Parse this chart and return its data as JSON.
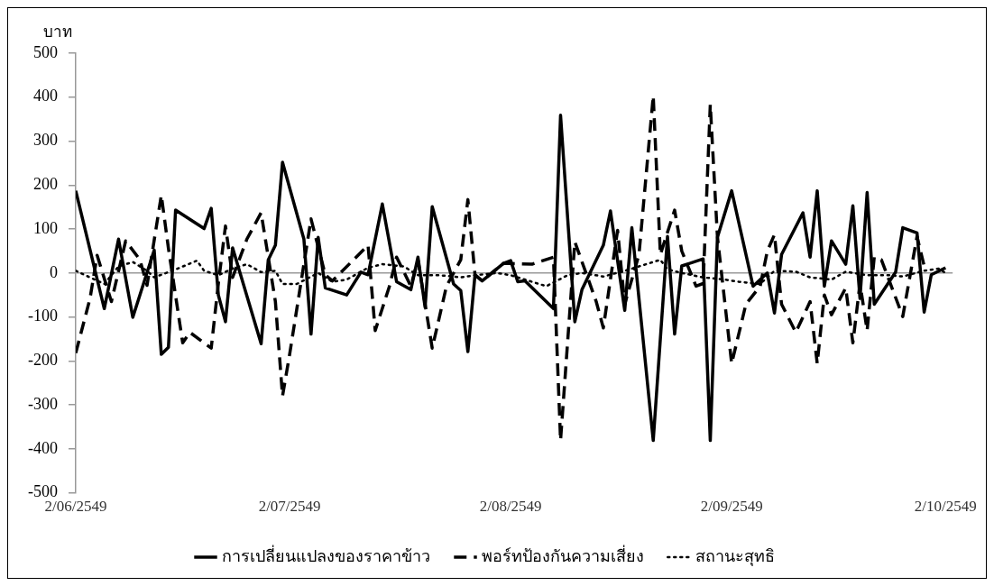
{
  "chart_data": {
    "type": "line",
    "ylabel": "บาท",
    "ylim": [
      -500,
      500
    ],
    "yticks": [
      -500,
      -400,
      -300,
      -200,
      -100,
      0,
      100,
      200,
      300,
      400,
      500
    ],
    "xlim": [
      "2549-06-02",
      "2549-10-03"
    ],
    "xticks": [
      {
        "value": "2549-06-02",
        "label": "2/06/2549"
      },
      {
        "value": "2549-07-02",
        "label": "2/07/2549"
      },
      {
        "value": "2549-08-02",
        "label": "2/08/2549"
      },
      {
        "value": "2549-09-02",
        "label": "2/09/2549"
      },
      {
        "value": "2549-10-02",
        "label": "2/10/2549"
      }
    ],
    "legend": "bottom",
    "marker": "none",
    "series": [
      {
        "name": "การเปลี่ยนแปลงของราคาข้าว",
        "color": "#000000",
        "line_style": "solid",
        "x": [
          "2549-06-02",
          "2549-06-06",
          "2549-06-08",
          "2549-06-10",
          "2549-06-13",
          "2549-06-14",
          "2549-06-15",
          "2549-06-16",
          "2549-06-20",
          "2549-06-21",
          "2549-06-22",
          "2549-06-23",
          "2549-06-24",
          "2549-06-28",
          "2549-06-29",
          "2549-06-30",
          "2549-07-01",
          "2549-07-04",
          "2549-07-05",
          "2549-07-06",
          "2549-07-07",
          "2549-07-10",
          "2549-07-12",
          "2549-07-13",
          "2549-07-15",
          "2549-07-17",
          "2549-07-19",
          "2549-07-20",
          "2549-07-21",
          "2549-07-22",
          "2549-07-25",
          "2549-07-26",
          "2549-07-27",
          "2549-07-28",
          "2549-07-29",
          "2549-08-01",
          "2549-08-02",
          "2549-08-03",
          "2549-08-04",
          "2549-08-08",
          "2549-08-09",
          "2549-08-11",
          "2549-08-12",
          "2549-08-15",
          "2549-08-16",
          "2549-08-18",
          "2549-08-19",
          "2549-08-22",
          "2549-08-24",
          "2549-08-25",
          "2549-08-26",
          "2549-08-29",
          "2549-08-30",
          "2549-08-31",
          "2549-09-02",
          "2549-09-05",
          "2549-09-07",
          "2549-09-08",
          "2549-09-09",
          "2549-09-12",
          "2549-09-13",
          "2549-09-14",
          "2549-09-15",
          "2549-09-16",
          "2549-09-18",
          "2549-09-19",
          "2549-09-20",
          "2549-09-21",
          "2549-09-22",
          "2549-09-25",
          "2549-09-26",
          "2549-09-28",
          "2549-09-29",
          "2549-09-30",
          "2549-10-02"
        ],
        "values": [
          187,
          -81,
          77,
          -101,
          52,
          -185,
          -169,
          143,
          101,
          147,
          -50,
          -111,
          57,
          -161,
          30,
          63,
          252,
          77,
          -139,
          81,
          -34,
          -50,
          2,
          -4,
          157,
          -20,
          -38,
          36,
          -78,
          151,
          -25,
          -40,
          -179,
          -4,
          -18,
          22,
          28,
          -20,
          -18,
          -81,
          359,
          -111,
          -38,
          63,
          141,
          -85,
          103,
          -381,
          83,
          -139,
          16,
          32,
          -381,
          81,
          187,
          -30,
          0,
          -91,
          42,
          137,
          36,
          187,
          -30,
          73,
          20,
          153,
          -58,
          183,
          -71,
          2,
          103,
          91,
          -89,
          -4,
          12
        ]
      },
      {
        "name": "พอร์ทป้องกันความเสี่ยง",
        "color": "#000000",
        "line_style": "dashed",
        "x": [
          "2549-06-02",
          "2549-06-04",
          "2549-06-05",
          "2549-06-07",
          "2549-06-09",
          "2549-06-11",
          "2549-06-12",
          "2549-06-14",
          "2549-06-15",
          "2549-06-17",
          "2549-06-18",
          "2549-06-21",
          "2549-06-22",
          "2549-06-23",
          "2549-06-24",
          "2549-06-26",
          "2549-06-28",
          "2549-06-30",
          "2549-07-01",
          "2549-07-02",
          "2549-07-05",
          "2549-07-07",
          "2549-07-08",
          "2549-07-13",
          "2549-07-14",
          "2549-07-16",
          "2549-07-17",
          "2549-07-19",
          "2549-07-20",
          "2549-07-22",
          "2549-07-24",
          "2549-07-26",
          "2549-07-27",
          "2549-07-28",
          "2549-07-29",
          "2549-08-01",
          "2549-08-05",
          "2549-08-08",
          "2549-08-09",
          "2549-08-11",
          "2549-08-14",
          "2549-08-15",
          "2549-08-17",
          "2549-08-18",
          "2549-08-20",
          "2549-08-22",
          "2549-08-23",
          "2549-08-25",
          "2549-08-26",
          "2549-08-28",
          "2549-08-29",
          "2549-08-30",
          "2549-08-31",
          "2549-09-02",
          "2549-09-04",
          "2549-09-06",
          "2549-09-07",
          "2549-09-08",
          "2549-09-09",
          "2549-09-11",
          "2549-09-13",
          "2549-09-14",
          "2549-09-15",
          "2549-09-16",
          "2549-09-18",
          "2549-09-19",
          "2549-09-20",
          "2549-09-21",
          "2549-09-22",
          "2549-09-23",
          "2549-09-26",
          "2549-09-28",
          "2549-09-29"
        ],
        "values": [
          -182,
          -58,
          40,
          -65,
          73,
          30,
          -28,
          177,
          56,
          -159,
          -135,
          -171,
          -24,
          107,
          -10,
          77,
          137,
          -65,
          -280,
          -185,
          123,
          -4,
          -18,
          63,
          -131,
          -30,
          36,
          -30,
          30,
          -171,
          -30,
          30,
          167,
          -4,
          -18,
          22,
          20,
          36,
          -381,
          71,
          -65,
          -125,
          97,
          -71,
          42,
          403,
          42,
          143,
          50,
          -30,
          -24,
          383,
          83,
          -206,
          -71,
          -30,
          50,
          87,
          -71,
          -135,
          -65,
          -206,
          -50,
          -95,
          -34,
          -159,
          -24,
          -131,
          36,
          30,
          -99,
          83,
          16
        ]
      },
      {
        "name": "สถานะสุทธิ",
        "color": "#000000",
        "line_style": "dotted",
        "x": [
          "2549-06-02",
          "2549-06-04",
          "2549-06-06",
          "2549-06-08",
          "2549-06-10",
          "2549-06-12",
          "2549-06-13",
          "2549-06-16",
          "2549-06-19",
          "2549-06-20",
          "2549-06-22",
          "2549-06-24",
          "2549-06-26",
          "2549-06-28",
          "2549-06-30",
          "2549-07-01",
          "2549-07-03",
          "2549-07-06",
          "2549-07-08",
          "2549-07-10",
          "2549-07-13",
          "2549-07-15",
          "2549-07-18",
          "2549-07-20",
          "2549-07-23",
          "2549-07-26",
          "2549-07-28",
          "2549-07-31",
          "2549-08-02",
          "2549-08-05",
          "2549-08-07",
          "2549-08-10",
          "2549-08-12",
          "2549-08-15",
          "2549-08-18",
          "2549-08-20",
          "2549-08-23",
          "2549-08-24",
          "2549-08-26",
          "2549-08-29",
          "2549-09-01",
          "2549-09-03",
          "2549-09-06",
          "2549-09-08",
          "2549-09-11",
          "2549-09-13",
          "2549-09-16",
          "2549-09-18",
          "2549-09-21",
          "2549-09-24",
          "2549-09-26",
          "2549-09-29",
          "2549-10-01",
          "2549-10-02"
        ],
        "values": [
          5,
          -10,
          -25,
          15,
          25,
          5,
          -10,
          8,
          28,
          5,
          -5,
          10,
          20,
          2,
          5,
          -25,
          -25,
          0,
          -20,
          -15,
          12,
          20,
          15,
          -5,
          -5,
          -10,
          -5,
          0,
          -5,
          -20,
          -30,
          -5,
          0,
          -8,
          5,
          15,
          30,
          8,
          0,
          -10,
          -15,
          -20,
          -25,
          5,
          3,
          -10,
          -15,
          3,
          -5,
          -5,
          -8,
          5,
          10,
          0
        ]
      }
    ]
  }
}
